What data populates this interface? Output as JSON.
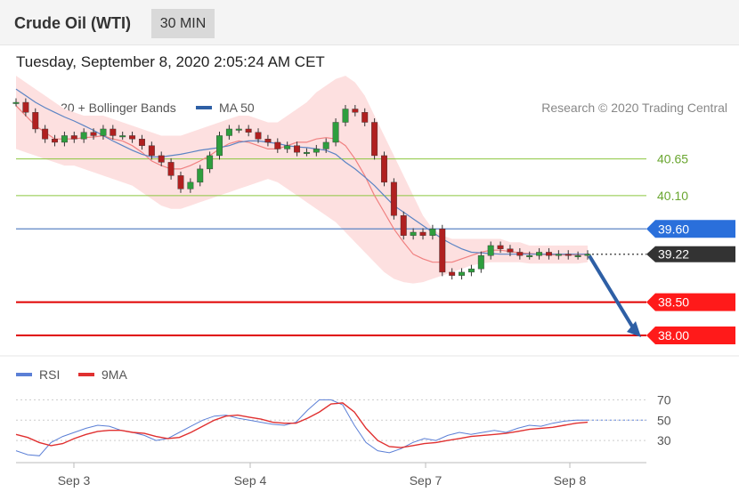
{
  "header": {
    "title": "Crude Oil (WTI)",
    "timeframe": "30 MIN",
    "datetime": "Tuesday, September 8, 2020 2:05:24 AM CET"
  },
  "legend": {
    "ma20_label": "MA 20 + Bollinger Bands",
    "ma20_color": "#f08080",
    "ma50_label": "MA 50",
    "ma50_color": "#2e5fa5",
    "research": "Research © 2020 Trading Central"
  },
  "rsi_legend": {
    "rsi_label": "RSI",
    "rsi_color": "#5b7fd6",
    "ma9_label": "9MA",
    "ma9_color": "#e03030"
  },
  "chart_data": [
    {
      "type": "line",
      "panel": "price",
      "ylim": [
        37.8,
        41.3
      ],
      "x_ticks": [
        "Sep 3",
        "Sep 4",
        "Sep 7",
        "Sep 8"
      ],
      "levels": [
        {
          "value": 40.65,
          "label": "40.65",
          "kind": "resistance",
          "color": "#8cc63f"
        },
        {
          "value": 40.1,
          "label": "40.10",
          "kind": "resistance",
          "color": "#8cc63f"
        },
        {
          "value": 39.6,
          "label": "39.60",
          "kind": "pivot",
          "color": "#2a6fdb"
        },
        {
          "value": 39.22,
          "label": "39.22",
          "kind": "last",
          "color": "#333333"
        },
        {
          "value": 38.5,
          "label": "38.50",
          "kind": "support",
          "color": "#e00000"
        },
        {
          "value": 38.0,
          "label": "38.00",
          "kind": "support",
          "color": "#e00000"
        }
      ],
      "price_series": [
        41.5,
        41.35,
        41.1,
        40.95,
        40.9,
        41.0,
        40.95,
        41.05,
        41.0,
        41.1,
        41.0,
        41.0,
        40.95,
        40.85,
        40.7,
        40.6,
        40.4,
        40.2,
        40.3,
        40.5,
        40.7,
        41.0,
        41.1,
        41.1,
        41.05,
        40.95,
        40.9,
        40.8,
        40.85,
        40.75,
        40.75,
        40.8,
        40.9,
        41.2,
        41.4,
        41.35,
        41.2,
        40.7,
        40.3,
        39.8,
        39.5,
        39.55,
        39.5,
        39.6,
        38.95,
        38.9,
        38.95,
        39.0,
        39.2,
        39.35,
        39.3,
        39.25,
        39.2,
        39.2,
        39.25,
        39.2,
        39.22,
        39.2,
        39.2,
        39.22
      ],
      "ma20": [
        41.45,
        41.3,
        41.15,
        41.05,
        40.95,
        40.95,
        40.95,
        40.97,
        40.98,
        41.0,
        40.95,
        40.92,
        40.85,
        40.75,
        40.62,
        40.55,
        40.5,
        40.5,
        40.55,
        40.62,
        40.7,
        40.8,
        40.88,
        40.92,
        40.9,
        40.85,
        40.8,
        40.8,
        40.85,
        40.9,
        40.9,
        40.95,
        40.97,
        40.95,
        40.85,
        40.65,
        40.4,
        40.1,
        39.85,
        39.6,
        39.4,
        39.22,
        39.15,
        39.1,
        39.1,
        39.1,
        39.15,
        39.2,
        39.25,
        39.28,
        39.28,
        39.26,
        39.24,
        39.23,
        39.22,
        39.21,
        39.21,
        39.21,
        39.21,
        39.22
      ],
      "ma50": [
        41.7,
        41.6,
        41.5,
        41.42,
        41.35,
        41.28,
        41.22,
        41.15,
        41.08,
        41.0,
        40.92,
        40.85,
        40.78,
        40.72,
        40.68,
        40.68,
        40.7,
        40.72,
        40.75,
        40.78,
        40.8,
        40.82,
        40.85,
        40.9,
        40.92,
        40.92,
        40.9,
        40.88,
        40.85,
        40.83,
        40.82,
        40.8,
        40.78,
        40.72,
        40.6,
        40.5,
        40.38,
        40.25,
        40.1,
        39.95,
        39.85,
        39.75,
        39.65,
        39.55,
        39.45,
        39.37,
        39.3,
        39.25,
        39.24,
        39.23,
        39.22,
        39.22,
        39.22,
        39.22,
        39.22,
        39.22,
        39.22,
        39.22,
        39.22,
        39.22
      ],
      "bb_upper": [
        41.9,
        41.8,
        41.7,
        41.6,
        41.5,
        41.4,
        41.35,
        41.3,
        41.3,
        41.3,
        41.25,
        41.2,
        41.15,
        41.1,
        41.05,
        41.0,
        41.0,
        41.0,
        41.05,
        41.1,
        41.15,
        41.2,
        41.25,
        41.3,
        41.3,
        41.25,
        41.2,
        41.2,
        41.3,
        41.4,
        41.5,
        41.65,
        41.75,
        41.85,
        41.9,
        41.8,
        41.6,
        41.3,
        41.0,
        40.7,
        40.4,
        40.1,
        39.8,
        39.6,
        39.5,
        39.45,
        39.45,
        39.45,
        39.45,
        39.45,
        39.45,
        39.4,
        39.4,
        39.35,
        39.35,
        39.35,
        39.35,
        39.35,
        39.35,
        39.35
      ],
      "bb_lower": [
        40.8,
        40.75,
        40.7,
        40.65,
        40.6,
        40.55,
        40.55,
        40.5,
        40.45,
        40.4,
        40.35,
        40.3,
        40.25,
        40.15,
        40.05,
        39.95,
        39.9,
        39.9,
        39.95,
        40.0,
        40.05,
        40.1,
        40.15,
        40.2,
        40.25,
        40.3,
        40.35,
        40.3,
        40.2,
        40.1,
        40.0,
        39.9,
        39.8,
        39.7,
        39.55,
        39.4,
        39.25,
        39.1,
        38.95,
        38.85,
        38.8,
        38.78,
        38.8,
        38.85,
        38.9,
        38.95,
        39.0,
        39.05,
        39.08,
        39.1,
        39.1,
        39.1,
        39.1,
        39.08,
        39.08,
        39.08,
        39.08,
        39.08,
        39.08,
        39.1
      ],
      "projection": {
        "from": 39.22,
        "to": 38.0
      }
    },
    {
      "type": "line",
      "panel": "rsi",
      "ylim": [
        10,
        80
      ],
      "y_ticks": [
        70,
        50,
        30
      ],
      "x_ticks": [
        "Sep 3",
        "Sep 4",
        "Sep 7",
        "Sep 8"
      ],
      "series": [
        {
          "name": "RSI",
          "color": "#5b7fd6",
          "values": [
            20,
            16,
            15,
            28,
            34,
            38,
            42,
            45,
            44,
            40,
            38,
            35,
            30,
            32,
            38,
            44,
            50,
            54,
            55,
            52,
            50,
            48,
            46,
            45,
            48,
            60,
            70,
            70,
            65,
            45,
            28,
            20,
            18,
            22,
            28,
            32,
            30,
            35,
            38,
            36,
            38,
            40,
            38,
            42,
            45,
            44,
            47,
            49,
            50,
            50
          ]
        },
        {
          "name": "9MA",
          "color": "#e03030",
          "values": [
            36,
            33,
            28,
            25,
            27,
            32,
            36,
            39,
            40,
            40,
            38,
            37,
            34,
            32,
            33,
            38,
            44,
            50,
            54,
            55,
            53,
            51,
            48,
            47,
            47,
            52,
            58,
            66,
            67,
            58,
            42,
            30,
            24,
            23,
            25,
            27,
            28,
            30,
            32,
            34,
            35,
            36,
            37,
            39,
            41,
            42,
            43,
            45,
            47,
            48
          ]
        }
      ]
    }
  ]
}
